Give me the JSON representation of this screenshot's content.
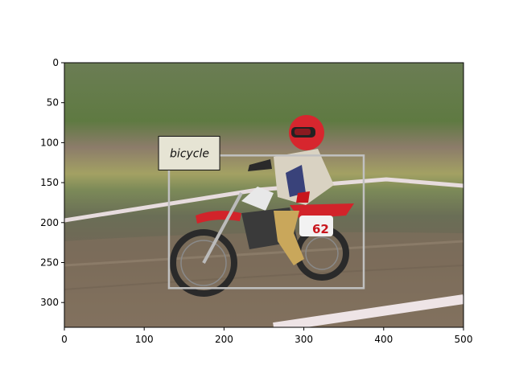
{
  "figure": {
    "x_ticks": [
      "0",
      "100",
      "200",
      "300",
      "400",
      "500"
    ],
    "y_ticks": [
      "0",
      "50",
      "100",
      "150",
      "200",
      "250",
      "300"
    ],
    "x_range": [
      0,
      500
    ],
    "y_range": [
      0,
      331
    ],
    "y_direction": "top-to-bottom"
  },
  "photo": {
    "description_colors": {
      "sky": "#ffffff",
      "grass_far": "#5d7a3e",
      "grass_band": "#8a9a5a",
      "dirt": "#7a6a58",
      "tape": "#d9c9cc",
      "bike_red": "#d2232a"
    }
  },
  "annotation": {
    "label": "bicycle",
    "box": {
      "x0": 131,
      "y0": 116,
      "x1": 375,
      "y1": 282
    },
    "label_anchor": {
      "x": 118,
      "y": 92
    },
    "box_color": "#c0c0c0",
    "label_bg": "#e6e4d4"
  },
  "rider": {
    "number": "62"
  }
}
